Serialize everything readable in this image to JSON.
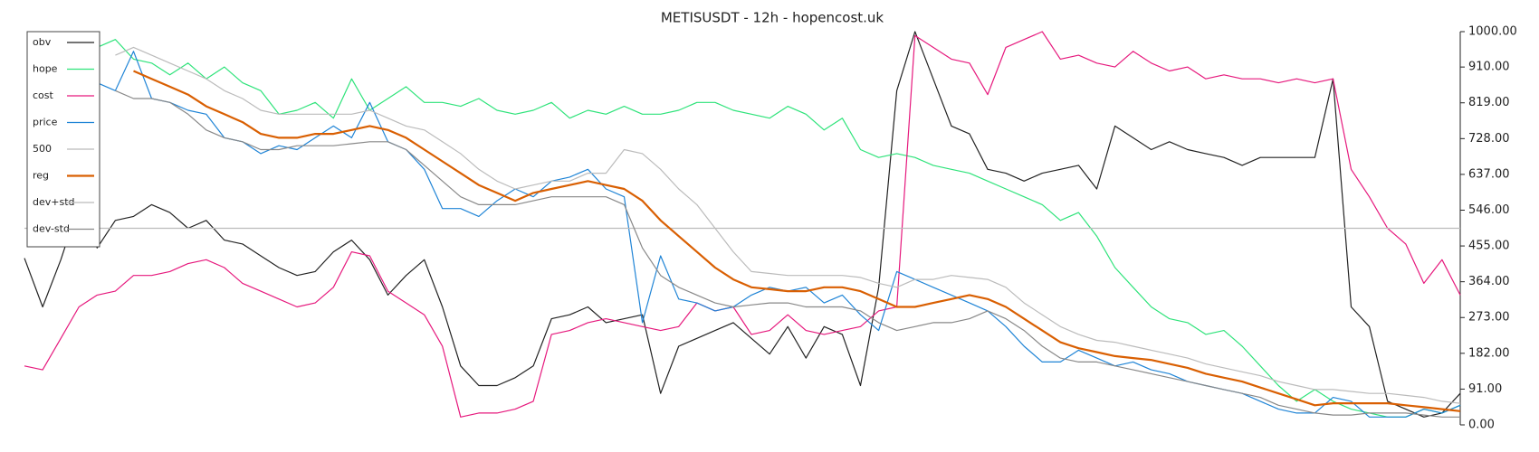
{
  "chart_data": {
    "type": "line",
    "title": "METISUSDT - 12h - hopencost.uk",
    "ylim": [
      0,
      1000
    ],
    "yticks": [
      {
        "value": 0,
        "label": "0.00"
      },
      {
        "value": 91,
        "label": "91.00"
      },
      {
        "value": 182,
        "label": "182.00"
      },
      {
        "value": 273,
        "label": "273.00"
      },
      {
        "value": 364,
        "label": "364.00"
      },
      {
        "value": 455,
        "label": "455.00"
      },
      {
        "value": 546,
        "label": "546.00"
      },
      {
        "value": 637,
        "label": "637.00"
      },
      {
        "value": 728,
        "label": "728.00"
      },
      {
        "value": 819,
        "label": "819.00"
      },
      {
        "value": 910,
        "label": "910.00"
      },
      {
        "value": 1000,
        "label": "1000.00"
      }
    ],
    "legend": "upper left",
    "series": [
      {
        "name": "obv",
        "color": "#222222",
        "values": [
          424,
          300,
          420,
          560,
          450,
          520,
          530,
          560,
          540,
          500,
          520,
          470,
          460,
          430,
          400,
          380,
          390,
          440,
          470,
          420,
          330,
          380,
          420,
          300,
          150,
          100,
          100,
          120,
          150,
          270,
          280,
          300,
          260,
          270,
          280,
          80,
          200,
          220,
          240,
          260,
          220,
          180,
          250,
          170,
          250,
          230,
          100,
          350,
          850,
          1000,
          880,
          760,
          740,
          650,
          640,
          620,
          640,
          650,
          660,
          600,
          760,
          730,
          700,
          720,
          700,
          690,
          680,
          660,
          680,
          680,
          680,
          680,
          880,
          300,
          250,
          60,
          40,
          20,
          30,
          80
        ]
      },
      {
        "name": "hope",
        "color": "#2ee37a",
        "values": [
          null,
          null,
          null,
          null,
          960,
          980,
          930,
          920,
          890,
          920,
          880,
          910,
          870,
          850,
          790,
          800,
          820,
          780,
          880,
          800,
          830,
          860,
          820,
          820,
          810,
          830,
          800,
          790,
          800,
          820,
          780,
          800,
          790,
          810,
          790,
          790,
          800,
          820,
          820,
          800,
          790,
          780,
          810,
          790,
          750,
          780,
          700,
          680,
          690,
          680,
          660,
          650,
          640,
          620,
          600,
          580,
          560,
          520,
          540,
          480,
          400,
          350,
          300,
          270,
          260,
          230,
          240,
          200,
          150,
          100,
          60,
          90,
          60,
          40,
          30,
          20,
          20,
          40,
          30,
          50
        ]
      },
      {
        "name": "cost",
        "color": "#e6197d",
        "values": [
          150,
          140,
          220,
          300,
          330,
          340,
          380,
          380,
          390,
          410,
          420,
          400,
          360,
          340,
          320,
          300,
          310,
          350,
          440,
          430,
          340,
          310,
          280,
          200,
          20,
          30,
          30,
          40,
          60,
          230,
          240,
          260,
          270,
          260,
          250,
          240,
          250,
          310,
          290,
          300,
          230,
          240,
          280,
          240,
          230,
          240,
          250,
          290,
          300,
          990,
          960,
          930,
          920,
          840,
          960,
          980,
          1000,
          930,
          940,
          920,
          910,
          950,
          920,
          900,
          910,
          880,
          890,
          880,
          880,
          870,
          880,
          870,
          880,
          650,
          580,
          500,
          460,
          360,
          420,
          330
        ]
      },
      {
        "name": "price",
        "color": "#1f84d6",
        "values": [
          null,
          null,
          null,
          null,
          870,
          850,
          950,
          830,
          820,
          800,
          790,
          730,
          720,
          690,
          710,
          700,
          730,
          760,
          730,
          820,
          720,
          700,
          650,
          550,
          550,
          530,
          570,
          600,
          580,
          620,
          630,
          650,
          600,
          580,
          260,
          430,
          320,
          310,
          290,
          300,
          330,
          350,
          340,
          350,
          310,
          330,
          280,
          240,
          390,
          370,
          350,
          330,
          310,
          290,
          250,
          200,
          160,
          160,
          190,
          170,
          150,
          160,
          140,
          130,
          110,
          100,
          90,
          80,
          60,
          40,
          30,
          30,
          70,
          60,
          20,
          20,
          20,
          40,
          30,
          50
        ]
      },
      {
        "name": "500",
        "color": "#bbbbbb",
        "values": [
          500,
          500,
          500,
          500,
          500,
          500,
          500,
          500,
          500,
          500,
          500,
          500,
          500,
          500,
          500,
          500,
          500,
          500,
          500,
          500,
          500,
          500,
          500,
          500,
          500,
          500,
          500,
          500,
          500,
          500,
          500,
          500,
          500,
          500,
          500,
          500,
          500,
          500,
          500,
          500,
          500,
          500,
          500,
          500,
          500,
          500,
          500,
          500,
          500,
          500,
          500,
          500,
          500,
          500,
          500,
          500,
          500,
          500,
          500,
          500,
          500,
          500,
          500,
          500,
          500,
          500,
          500,
          500,
          500,
          500,
          500,
          500,
          500,
          500,
          500,
          500,
          500,
          500,
          500,
          500
        ]
      },
      {
        "name": "reg",
        "color": "#d95f02",
        "values": [
          null,
          null,
          null,
          null,
          null,
          null,
          900,
          880,
          860,
          840,
          810,
          790,
          770,
          740,
          730,
          730,
          740,
          740,
          750,
          760,
          750,
          730,
          700,
          670,
          640,
          610,
          590,
          570,
          590,
          600,
          610,
          620,
          610,
          600,
          570,
          520,
          480,
          440,
          400,
          370,
          350,
          345,
          340,
          340,
          350,
          350,
          340,
          320,
          300,
          300,
          310,
          320,
          330,
          320,
          300,
          270,
          240,
          210,
          195,
          185,
          175,
          170,
          165,
          155,
          145,
          130,
          120,
          110,
          95,
          80,
          65,
          50,
          55,
          55,
          55,
          55,
          50,
          45,
          40,
          35
        ]
      },
      {
        "name": "dev+std",
        "color": "#bbbbbb",
        "values": [
          null,
          null,
          null,
          null,
          null,
          940,
          960,
          940,
          920,
          900,
          880,
          850,
          830,
          800,
          790,
          790,
          790,
          790,
          790,
          800,
          780,
          760,
          750,
          720,
          690,
          650,
          620,
          600,
          610,
          620,
          620,
          640,
          640,
          700,
          690,
          650,
          600,
          560,
          500,
          440,
          390,
          385,
          380,
          380,
          380,
          380,
          375,
          360,
          350,
          370,
          370,
          380,
          375,
          370,
          350,
          310,
          280,
          250,
          230,
          215,
          210,
          200,
          190,
          180,
          170,
          155,
          145,
          135,
          125,
          110,
          100,
          90,
          90,
          85,
          80,
          80,
          75,
          70,
          60,
          55
        ]
      },
      {
        "name": "dev-std",
        "color": "#888888",
        "values": [
          null,
          null,
          null,
          null,
          null,
          850,
          830,
          830,
          820,
          790,
          750,
          730,
          720,
          700,
          700,
          710,
          710,
          710,
          715,
          720,
          720,
          700,
          660,
          620,
          580,
          560,
          560,
          560,
          570,
          580,
          580,
          580,
          580,
          560,
          450,
          380,
          350,
          330,
          310,
          300,
          305,
          310,
          310,
          300,
          300,
          300,
          290,
          260,
          240,
          250,
          260,
          260,
          270,
          290,
          270,
          240,
          200,
          170,
          160,
          160,
          150,
          140,
          130,
          120,
          110,
          100,
          90,
          80,
          70,
          50,
          40,
          30,
          25,
          25,
          30,
          30,
          30,
          25,
          20,
          20
        ]
      }
    ]
  }
}
